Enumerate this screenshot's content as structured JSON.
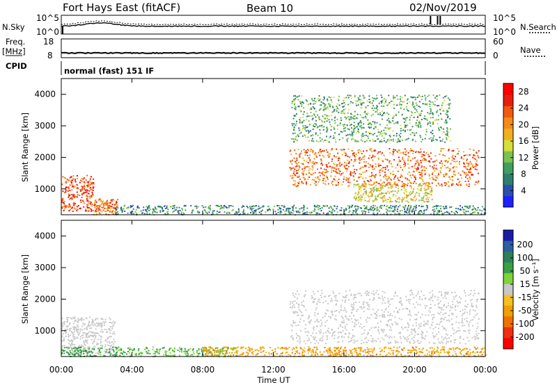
{
  "header": {
    "title": "Fort Hays East (fitACF)",
    "beam": "Beam 10",
    "date": "02/Nov/2019"
  },
  "noise_panel": {
    "left_label": "N.Sky",
    "right_label": "N.Search",
    "left_ticks": [
      "10^5",
      "10^0"
    ],
    "right_ticks": [
      "10^5",
      "10^0"
    ],
    "left_series": {
      "name": "N.Sky",
      "style": "solid"
    },
    "right_series": {
      "name": "N.Search",
      "style": "dotted"
    }
  },
  "freq_panel": {
    "left_label_top": "Freq.",
    "left_label_unit": "[MHz]",
    "right_label": "Nave",
    "left_ticks": [
      18,
      8
    ],
    "right_ticks": [
      60,
      0
    ],
    "freq_mhz": 10.5,
    "nave": 24
  },
  "cpid": {
    "label": "CPID",
    "text": "normal (fast) 151 IF"
  },
  "power_panel": {
    "ylabel": "Slant Range [km]",
    "yticks": [
      1000,
      2000,
      3000,
      4000
    ],
    "colorbar": {
      "label": "Power [dB]",
      "ticks": [
        4,
        8,
        12,
        16,
        20,
        24,
        28
      ],
      "range": [
        0,
        30
      ],
      "colors": [
        "#2020ff",
        "#2a4fb0",
        "#2f7f6e",
        "#3f9f5f",
        "#7ec24e",
        "#d6de3a",
        "#f0b020",
        "#f58a18",
        "#f05a10",
        "#e81e0e",
        "#ff0000"
      ]
    }
  },
  "velocity_panel": {
    "ylabel": "Slant Range [km]",
    "yticks": [
      1000,
      2000,
      3000,
      4000
    ],
    "colorbar": {
      "label": "Velocity [m s⁻¹]",
      "ticks": [
        "200",
        "100",
        "50",
        "15",
        "-15",
        "-50",
        "-100",
        "-200"
      ],
      "colors_top_to_bottom": [
        "#1a1aa8",
        "#2c5f9e",
        "#2f7f5a",
        "#3aa046",
        "#7ed43a",
        "#c8c8c8",
        "#f5c020",
        "#f0a000",
        "#f07000",
        "#f03010",
        "#ff0000"
      ]
    }
  },
  "xaxis": {
    "label": "Time UT",
    "ticks": [
      "00:00",
      "04:00",
      "08:00",
      "12:00",
      "16:00",
      "20:00",
      "00:00"
    ]
  },
  "chart_data": {
    "type": "heatmap",
    "title": "Fort Hays East (fitACF)",
    "subtitle": "Beam 10",
    "date": "02/Nov/2019",
    "xlabel": "Time UT",
    "ylabel": "Slant Range [km]",
    "x_range_hours": [
      0,
      24
    ],
    "y_range_km": [
      180,
      4500
    ],
    "panels": [
      {
        "name": "Power",
        "units": "dB",
        "value_range": [
          0,
          30
        ],
        "scatter_regions": [
          {
            "t_start": 0.0,
            "t_end": 1.8,
            "r_low": 300,
            "r_high": 1450,
            "level_db": 24
          },
          {
            "t_start": 1.8,
            "t_end": 3.2,
            "r_low": 200,
            "r_high": 700,
            "level_db": 22
          },
          {
            "t_start": 3.0,
            "t_end": 24.0,
            "r_low": 200,
            "r_high": 500,
            "level_db": 8
          },
          {
            "t_start": 12.9,
            "t_end": 23.6,
            "r_low": 1100,
            "r_high": 2300,
            "level_db": 22
          },
          {
            "t_start": 16.5,
            "t_end": 21.0,
            "r_low": 600,
            "r_high": 1200,
            "level_db": 16
          },
          {
            "t_start": 13.0,
            "t_end": 22.0,
            "r_low": 2500,
            "r_high": 4000,
            "level_db": 10
          }
        ]
      },
      {
        "name": "Velocity",
        "units": "m s⁻¹",
        "value_range": [
          -200,
          200
        ],
        "scatter_regions": [
          {
            "t_start": 0.0,
            "t_end": 3.0,
            "r_low": 300,
            "r_high": 1450,
            "velocity": 0
          },
          {
            "t_start": 0.0,
            "t_end": 3.2,
            "r_low": 200,
            "r_high": 500,
            "velocity": 40
          },
          {
            "t_start": 3.0,
            "t_end": 10.0,
            "r_low": 200,
            "r_high": 500,
            "velocity": 30
          },
          {
            "t_start": 8.0,
            "t_end": 24.0,
            "r_low": 200,
            "r_high": 500,
            "velocity": -40
          },
          {
            "t_start": 12.9,
            "t_end": 23.6,
            "r_low": 600,
            "r_high": 2300,
            "velocity": 0
          }
        ]
      }
    ]
  }
}
